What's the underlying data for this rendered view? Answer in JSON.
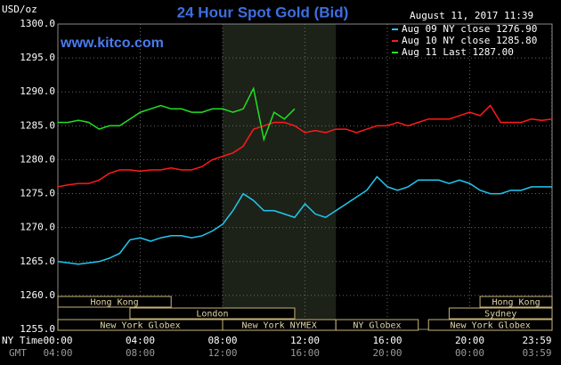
{
  "chart_data": {
    "type": "line",
    "title": "24 Hour Spot Gold (Bid)",
    "y_unit": "USD/oz",
    "source": "www.kitco.com",
    "timestamp": "August 11, 2017 11:39",
    "x_label": "NY Time",
    "x2_label": "GMT",
    "x": [
      0,
      0.5,
      1,
      1.5,
      2,
      2.5,
      3,
      3.5,
      4,
      4.5,
      5,
      5.5,
      6,
      6.5,
      7,
      7.5,
      8,
      8.5,
      9,
      9.5,
      10,
      10.5,
      11,
      11.5,
      12,
      12.5,
      13,
      13.5,
      14,
      14.5,
      15,
      15.5,
      16,
      16.5,
      17,
      17.5,
      18,
      18.5,
      19,
      19.5,
      20,
      20.5,
      21,
      21.5,
      22,
      22.5,
      23,
      23.5,
      24
    ],
    "series": [
      {
        "name": "Aug 09 NY close 1276.90",
        "color": "#22c8f0",
        "values": [
          1265.0,
          1264.8,
          1264.6,
          1264.8,
          1265.0,
          1265.5,
          1266.2,
          1268.2,
          1268.5,
          1268.0,
          1268.5,
          1268.8,
          1268.8,
          1268.5,
          1268.8,
          1269.5,
          1270.5,
          1272.5,
          1275.0,
          1274.0,
          1272.5,
          1272.5,
          1272.0,
          1271.5,
          1273.5,
          1272.0,
          1271.5,
          1272.5,
          1273.5,
          1274.5,
          1275.5,
          1277.5,
          1276.0,
          1275.5,
          1276.0,
          1277.0,
          1277.0,
          1277.0,
          1276.5,
          1277.0,
          1276.5,
          1275.5,
          1275.0,
          1275.0,
          1275.5,
          1275.5,
          1276.0,
          1276.0,
          1276.0
        ]
      },
      {
        "name": "Aug 10 NY close 1285.80",
        "color": "#ff1a1a",
        "values": [
          1276.0,
          1276.3,
          1276.5,
          1276.5,
          1277.0,
          1278.0,
          1278.5,
          1278.5,
          1278.3,
          1278.5,
          1278.5,
          1278.8,
          1278.5,
          1278.5,
          1279.0,
          1280.0,
          1280.5,
          1281.0,
          1282.0,
          1284.5,
          1285.0,
          1285.5,
          1285.5,
          1285.0,
          1284.0,
          1284.3,
          1284.0,
          1284.5,
          1284.5,
          1284.0,
          1284.5,
          1285.0,
          1285.0,
          1285.5,
          1285.0,
          1285.5,
          1286.0,
          1286.0,
          1286.0,
          1286.5,
          1287.0,
          1286.5,
          1288.0,
          1285.5,
          1285.5,
          1285.5,
          1286.0,
          1285.8,
          1286.0
        ]
      },
      {
        "name": "Aug 11 Last 1287.00",
        "color": "#22e022",
        "values": [
          1285.5,
          1285.5,
          1285.8,
          1285.5,
          1284.5,
          1285.0,
          1285.0,
          1286.0,
          1287.0,
          1287.5,
          1288.0,
          1287.5,
          1287.5,
          1287.0,
          1287.0,
          1287.5,
          1287.5,
          1287.0,
          1287.5,
          1290.5,
          1283.0,
          1287.0,
          1286.0,
          1287.5,
          null,
          null,
          null,
          null,
          null,
          null,
          null,
          null,
          null,
          null,
          null,
          null,
          null,
          null,
          null,
          null,
          null,
          null,
          null,
          null,
          null,
          null,
          null,
          null,
          null
        ]
      }
    ],
    "xlim": [
      0,
      24
    ],
    "xticks": [
      {
        "value": 0,
        "label": "00:00"
      },
      {
        "value": 4,
        "label": "04:00"
      },
      {
        "value": 8,
        "label": "08:00"
      },
      {
        "value": 12,
        "label": "12:00"
      },
      {
        "value": 16,
        "label": "16:00"
      },
      {
        "value": 20,
        "label": "20:00"
      },
      {
        "value": 23.983,
        "label": "23:59"
      }
    ],
    "x2tick_labels": [
      "04:00",
      "08:00",
      "12:00",
      "16:00",
      "20:00",
      "00:00",
      "03:59"
    ],
    "ylim": [
      1255,
      1300
    ],
    "yticks": [
      {
        "value": 1255,
        "label": "1255.0"
      },
      {
        "value": 1260,
        "label": "1260.0"
      },
      {
        "value": 1265,
        "label": "1265.0"
      },
      {
        "value": 1270,
        "label": "1270.0"
      },
      {
        "value": 1275,
        "label": "1275.0"
      },
      {
        "value": 1280,
        "label": "1280.0"
      },
      {
        "value": 1285,
        "label": "1285.0"
      },
      {
        "value": 1290,
        "label": "1290.0"
      },
      {
        "value": 1295,
        "label": "1295.0"
      },
      {
        "value": 1300,
        "label": "1300.0"
      }
    ],
    "grid": true,
    "shaded_range": [
      8,
      13.5
    ],
    "sessions": [
      {
        "label": "Hong Kong",
        "start": 0,
        "end": 5.5,
        "row": 0
      },
      {
        "label": "London",
        "start": 3.5,
        "end": 11.5,
        "row": 1
      },
      {
        "label": "New York Globex",
        "start": 0,
        "end": 8,
        "row": 2
      },
      {
        "label": "New York NYMEX",
        "start": 8,
        "end": 13.5,
        "row": 2
      },
      {
        "label": "NY Globex",
        "start": 13.5,
        "end": 17.5,
        "row": 2
      },
      {
        "label": "Hong Kong",
        "start": 20.5,
        "end": 24,
        "row": 0
      },
      {
        "label": "Sydney",
        "start": 19,
        "end": 24,
        "row": 1
      },
      {
        "label": "New York Globex",
        "start": 18,
        "end": 24,
        "row": 2
      }
    ]
  }
}
